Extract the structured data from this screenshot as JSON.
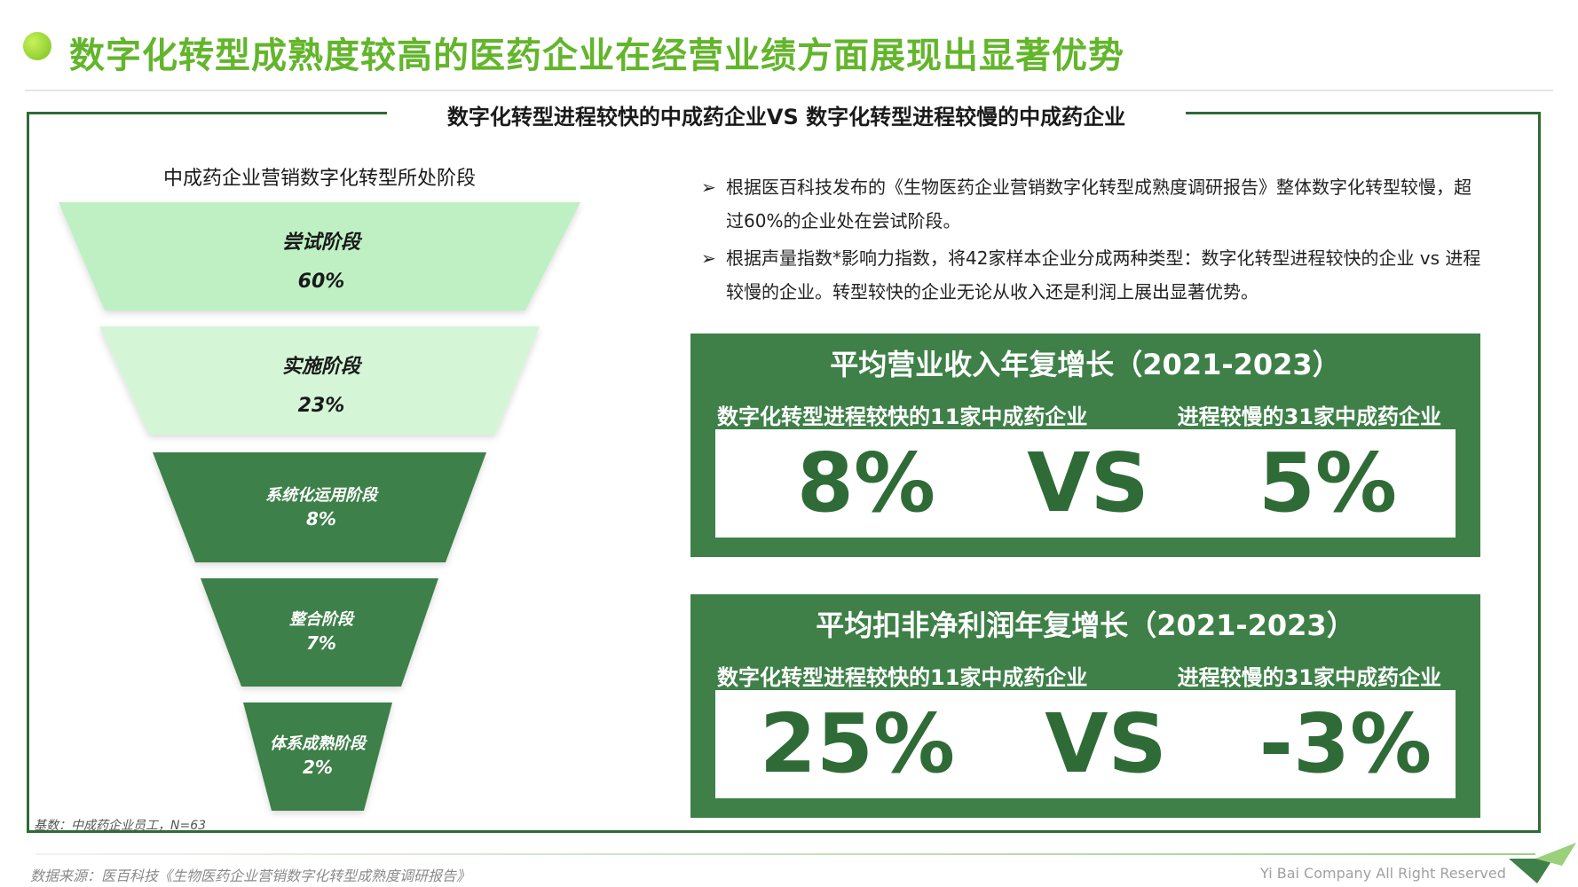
{
  "header": {
    "title": "数字化转型成熟度较高的医药企业在经营业绩方面展现出显著优势"
  },
  "subtitle": "数字化转型进程较快的中成药企业VS 数字化转型进程较慢的中成药企业",
  "funnel": {
    "title": "中成药企业营销数字化转型所处阶段",
    "stages": [
      {
        "name": "尝试阶段",
        "value": "60%"
      },
      {
        "name": "实施阶段",
        "value": "23%"
      },
      {
        "name": "系统化运用阶段",
        "value": "8%"
      },
      {
        "name": "整合阶段",
        "value": "7%"
      },
      {
        "name": "体系成熟阶段",
        "value": "2%"
      }
    ],
    "base_note": "基数：中成药企业员工，N=63"
  },
  "bullets": [
    "根据医百科技发布的《生物医药企业营销数字化转型成熟度调研报告》整体数字化转型较慢，超过60%的企业处在尝试阶段。",
    "根据声量指数*影响力指数，将42家样本企业分成两种类型：数字化转型进程较快的企业 vs 进程较慢的企业。转型较快的企业无论从收入还是利润上展出显著优势。"
  ],
  "panels": [
    {
      "title": "平均营业收入年复增长（2021-2023）",
      "left_label": "数字化转型进程较快的11家中成药企业",
      "right_label": "进程较慢的31家中成药企业",
      "left_value": "8%",
      "vs": "VS",
      "right_value": "5%"
    },
    {
      "title": "平均扣非净利润年复增长（2021-2023）",
      "left_label": "数字化转型进程较快的11家中成药企业",
      "right_label": "进程较慢的31家中成药企业",
      "left_value": "25%",
      "vs": "VS",
      "right_value": "-3%"
    }
  ],
  "footer": {
    "source": "数据来源：医百科技《生物医药企业营销数字化转型成熟度调研报告》",
    "company": "Yi Bai Company All Right Reserved"
  },
  "colors": {
    "title_green": "#63b52b",
    "dark_green": "#3e8048",
    "light_green_1": "#bff0c4",
    "light_green_2": "#d4f6d6"
  }
}
